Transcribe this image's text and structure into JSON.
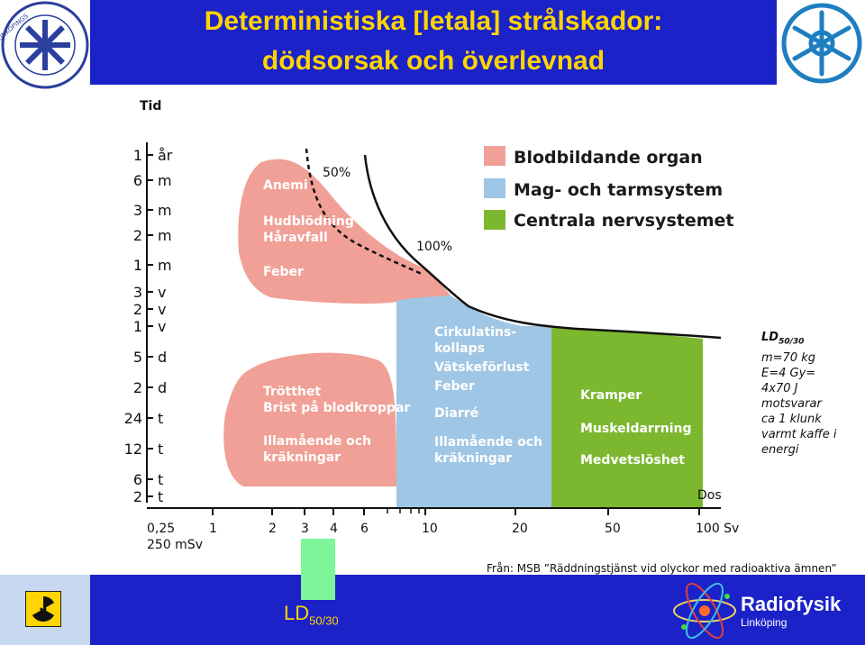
{
  "header": {
    "title_line1": "Deterministiska [letala] strålskador:",
    "title_line2": "dödsorsak och överlevnad"
  },
  "diagram": {
    "y_axis_title": "Tid",
    "x_axis_title": "Dos",
    "time_ticks": [
      {
        "num": "1",
        "unit": "år"
      },
      {
        "num": "6",
        "unit": "m"
      },
      {
        "num": "3",
        "unit": "m"
      },
      {
        "num": "2",
        "unit": "m"
      },
      {
        "num": "1",
        "unit": "m"
      },
      {
        "num": "3",
        "unit": "v"
      },
      {
        "num": "2",
        "unit": "v"
      },
      {
        "num": "1",
        "unit": "v"
      },
      {
        "num": "5",
        "unit": "d"
      },
      {
        "num": "2",
        "unit": "d"
      },
      {
        "num": "24",
        "unit": "t"
      },
      {
        "num": "12",
        "unit": "t"
      },
      {
        "num": "6",
        "unit": "t"
      },
      {
        "num": "2",
        "unit": "t"
      }
    ],
    "dose_ticks": [
      "1",
      "2",
      "3",
      "4",
      "6",
      "10",
      "20",
      "50",
      "100 Sv"
    ],
    "dose_start": [
      "0,25",
      "250 mSv"
    ],
    "curve_labels": {
      "p50": "50%",
      "p100": "100%"
    },
    "legend": [
      {
        "label": "Blodbildande organ",
        "color": "#f0a096"
      },
      {
        "label": "Mag- och tarmsystem",
        "color": "#9fc6e4"
      },
      {
        "label": "Centrala nervsystemet",
        "color": "#7cb82f"
      }
    ],
    "blood_late_effects": [
      "Anemi",
      "Hudblödning",
      "Håravfall",
      "Feber"
    ],
    "blood_early_effects": [
      "Trötthet",
      "Brist på blodkroppar",
      "Illamående och",
      "kräkningar"
    ],
    "gi_effects": [
      "Cirkulatins-",
      "kollaps",
      "Vätskeförlust",
      "Feber",
      "Diarré",
      "Illamående och",
      "kräkningar"
    ],
    "cns_effects": [
      "Kramper",
      "Muskeldarrning",
      "Medvetslöshet"
    ]
  },
  "side_note": {
    "ld_main": "LD",
    "ld_sub": "50/30",
    "lines": [
      "m=70 kg",
      "E=4 Gy=",
      "4x70 J",
      "motsvarar",
      "ca 1 klunk",
      "varmt kaffe i",
      "energi"
    ]
  },
  "source": "Från: MSB ”Räddningstjänst vid olyckor med radioaktiva ämnen”",
  "footer": {
    "ld_main": "LD",
    "ld_sub": "50/30",
    "brand_title": "Radiofysik",
    "brand_sub": "Linköping"
  },
  "logos": {
    "left": "Linköpings universitet / Hälsouniversitetet seal",
    "right": "snowflake emblem",
    "footer_left": "radiation-warning-icon",
    "footer_right": "atom-icon"
  },
  "colors": {
    "header_blue": "#1b22c8",
    "title_yellow": "#ffd400",
    "ld_bar_green": "#7ff59a"
  }
}
